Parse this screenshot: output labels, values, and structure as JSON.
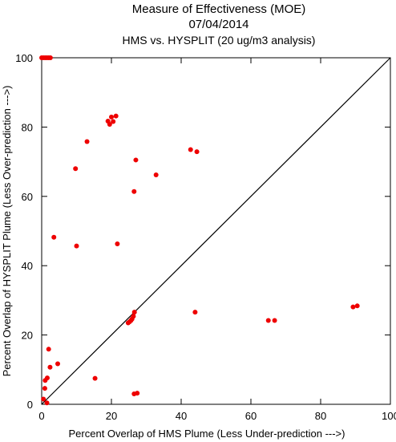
{
  "chart_data": {
    "type": "scatter",
    "title": "Measure of Effectiveness (MOE)",
    "subtitle": "07/04/2014",
    "subtitle2": "HMS vs. HYSPLIT  (20 ug/m3 analysis)",
    "xlabel": "Percent Overlap of HMS Plume (Less Under-prediction --->)",
    "ylabel": "Percent Overlap of HYSPLIT Plume (Less Over-prediction --->)",
    "xlim": [
      0,
      100
    ],
    "ylim": [
      0,
      100
    ],
    "xticks": [
      0,
      20,
      40,
      60,
      80,
      100
    ],
    "yticks": [
      0,
      20,
      40,
      60,
      80,
      100
    ],
    "grid": false,
    "reference_line": "diagonal y = x",
    "point_color": "#ee0000",
    "points": [
      {
        "x": 0.0,
        "y": 100
      },
      {
        "x": 0.5,
        "y": 100
      },
      {
        "x": 1.0,
        "y": 100
      },
      {
        "x": 1.5,
        "y": 100
      },
      {
        "x": 2.0,
        "y": 100
      },
      {
        "x": 2.5,
        "y": 100
      },
      {
        "x": 19.0,
        "y": 81.7
      },
      {
        "x": 19.5,
        "y": 80.8
      },
      {
        "x": 20.0,
        "y": 82.9
      },
      {
        "x": 20.5,
        "y": 81.6
      },
      {
        "x": 21.3,
        "y": 83.2
      },
      {
        "x": 13.0,
        "y": 75.8
      },
      {
        "x": 42.7,
        "y": 73.5
      },
      {
        "x": 44.5,
        "y": 72.9
      },
      {
        "x": 27.0,
        "y": 70.5
      },
      {
        "x": 9.7,
        "y": 68.0
      },
      {
        "x": 32.8,
        "y": 66.2
      },
      {
        "x": 26.5,
        "y": 61.4
      },
      {
        "x": 3.5,
        "y": 48.2
      },
      {
        "x": 10.0,
        "y": 45.7
      },
      {
        "x": 21.7,
        "y": 46.3
      },
      {
        "x": 44.0,
        "y": 26.6
      },
      {
        "x": 89.3,
        "y": 28.1
      },
      {
        "x": 90.5,
        "y": 28.4
      },
      {
        "x": 65.0,
        "y": 24.2
      },
      {
        "x": 66.8,
        "y": 24.2
      },
      {
        "x": 26.6,
        "y": 26.6
      },
      {
        "x": 26.3,
        "y": 25.4
      },
      {
        "x": 25.9,
        "y": 24.6
      },
      {
        "x": 25.6,
        "y": 24.2
      },
      {
        "x": 25.2,
        "y": 23.8
      },
      {
        "x": 24.8,
        "y": 23.5
      },
      {
        "x": 2.0,
        "y": 15.9
      },
      {
        "x": 4.6,
        "y": 11.7
      },
      {
        "x": 2.4,
        "y": 10.7
      },
      {
        "x": 1.6,
        "y": 7.6
      },
      {
        "x": 1.0,
        "y": 6.9
      },
      {
        "x": 15.3,
        "y": 7.5
      },
      {
        "x": 0.9,
        "y": 4.6
      },
      {
        "x": 0.5,
        "y": 1.5
      },
      {
        "x": 1.5,
        "y": 0.4
      },
      {
        "x": 26.5,
        "y": 3.0
      },
      {
        "x": 27.4,
        "y": 3.2
      }
    ]
  }
}
